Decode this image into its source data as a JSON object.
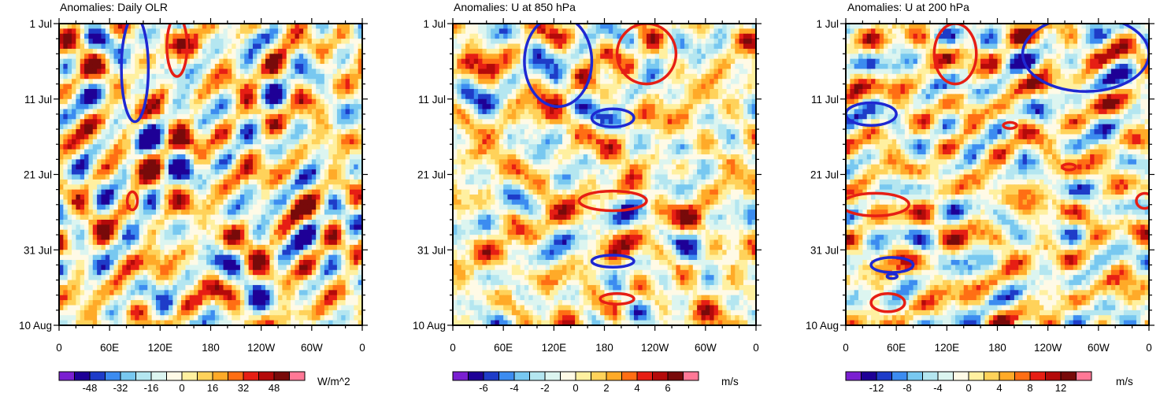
{
  "colors": {
    "scale": [
      "#7a1fd1",
      "#1e0096",
      "#1e3cc8",
      "#3c8cf0",
      "#78c8f0",
      "#b4e6f0",
      "#dcf5f0",
      "#fffae6",
      "#fff0a0",
      "#ffd25a",
      "#ffaa28",
      "#ff6e14",
      "#e61e14",
      "#b40a0a",
      "#780a0a",
      "#ff7896"
    ],
    "contour_positive": "#e61e14",
    "contour_negative": "#1e28d2"
  },
  "chart_data": [
    {
      "type": "heatmap",
      "title": "Anomalies: Daily OLR",
      "x_ticks": [
        "0",
        "60E",
        "120E",
        "180",
        "120W",
        "60W",
        "0"
      ],
      "x_range_deg": [
        0,
        360
      ],
      "y_ticks": [
        "1 Jul",
        "11 Jul",
        "21 Jul",
        "31 Jul",
        "10 Aug"
      ],
      "y_range_days": [
        0,
        40
      ],
      "colorbar": {
        "labels": [
          "-48",
          "-32",
          "-16",
          "0",
          "16",
          "32",
          "48"
        ],
        "units": "W/m^2",
        "levels": [
          -56,
          -48,
          -40,
          -32,
          -24,
          -16,
          -8,
          0,
          8,
          16,
          24,
          32,
          40,
          48,
          56
        ],
        "range": [
          -64,
          64
        ]
      },
      "contours": [
        {
          "sign": "neg",
          "lon": 90,
          "day": 6,
          "rlon": 16,
          "rday": 7
        },
        {
          "sign": "pos",
          "lon": 140,
          "day": 3,
          "rlon": 12,
          "rday": 4
        },
        {
          "sign": "pos",
          "lon": 87,
          "day": 23.5,
          "rlon": 6,
          "rday": 1.2
        }
      ]
    },
    {
      "type": "heatmap",
      "title": "Anomalies: U at 850 hPa",
      "x_ticks": [
        "0",
        "60E",
        "120E",
        "180",
        "120W",
        "60W",
        "0"
      ],
      "x_range_deg": [
        0,
        360
      ],
      "y_ticks": [
        "1 Jul",
        "11 Jul",
        "21 Jul",
        "31 Jul",
        "10 Aug"
      ],
      "y_range_days": [
        0,
        40
      ],
      "colorbar": {
        "labels": [
          "-6",
          "-4",
          "-2",
          "0",
          "2",
          "4",
          "6"
        ],
        "units": "m/s",
        "levels": [
          -7,
          -6,
          -5,
          -4,
          -3,
          -2,
          -1,
          0,
          1,
          2,
          3,
          4,
          5,
          6,
          7
        ],
        "range": [
          -8,
          8
        ]
      },
      "contours": [
        {
          "sign": "neg",
          "lon": 125,
          "day": 5,
          "rlon": 40,
          "rday": 6
        },
        {
          "sign": "neg",
          "lon": 190,
          "day": 12.5,
          "rlon": 25,
          "rday": 1.2
        },
        {
          "sign": "pos",
          "lon": 230,
          "day": 4,
          "rlon": 35,
          "rday": 4
        },
        {
          "sign": "pos",
          "lon": 190,
          "day": 23.5,
          "rlon": 40,
          "rday": 1.3
        },
        {
          "sign": "neg",
          "lon": 190,
          "day": 31.5,
          "rlon": 25,
          "rday": 0.8
        },
        {
          "sign": "pos",
          "lon": 195,
          "day": 36.5,
          "rlon": 20,
          "rday": 0.7
        }
      ]
    },
    {
      "type": "heatmap",
      "title": "Anomalies: U at 200 hPa",
      "x_ticks": [
        "0",
        "60E",
        "120E",
        "180",
        "120W",
        "60W",
        "0"
      ],
      "x_range_deg": [
        0,
        360
      ],
      "y_ticks": [
        "1 Jul",
        "11 Jul",
        "21 Jul",
        "31 Jul",
        "10 Aug"
      ],
      "y_range_days": [
        0,
        40
      ],
      "colorbar": {
        "labels": [
          "-12",
          "-8",
          "-4",
          "0",
          "4",
          "8",
          "12"
        ],
        "units": "m/s",
        "levels": [
          -14,
          -12,
          -10,
          -8,
          -6,
          -4,
          -2,
          0,
          2,
          4,
          6,
          8,
          10,
          12,
          14
        ],
        "range": [
          -16,
          16
        ]
      },
      "contours": [
        {
          "sign": "pos",
          "lon": 130,
          "day": 4,
          "rlon": 25,
          "rday": 4
        },
        {
          "sign": "neg",
          "lon": 285,
          "day": 4,
          "rlon": 75,
          "rday": 5
        },
        {
          "sign": "neg",
          "lon": 30,
          "day": 12,
          "rlon": 30,
          "rday": 1.5
        },
        {
          "sign": "pos",
          "lon": 35,
          "day": 24,
          "rlon": 40,
          "rday": 1.5
        },
        {
          "sign": "pos",
          "lon": 355,
          "day": 23.5,
          "rlon": 10,
          "rday": 1
        },
        {
          "sign": "pos",
          "lon": 195,
          "day": 13.5,
          "rlon": 8,
          "rday": 0.4
        },
        {
          "sign": "pos",
          "lon": 265,
          "day": 19,
          "rlon": 8,
          "rday": 0.4
        },
        {
          "sign": "neg",
          "lon": 55,
          "day": 32,
          "rlon": 25,
          "rday": 1
        },
        {
          "sign": "neg",
          "lon": 55,
          "day": 33.5,
          "rlon": 6,
          "rday": 0.3
        },
        {
          "sign": "pos",
          "lon": 50,
          "day": 37,
          "rlon": 20,
          "rday": 1.2
        }
      ]
    }
  ]
}
